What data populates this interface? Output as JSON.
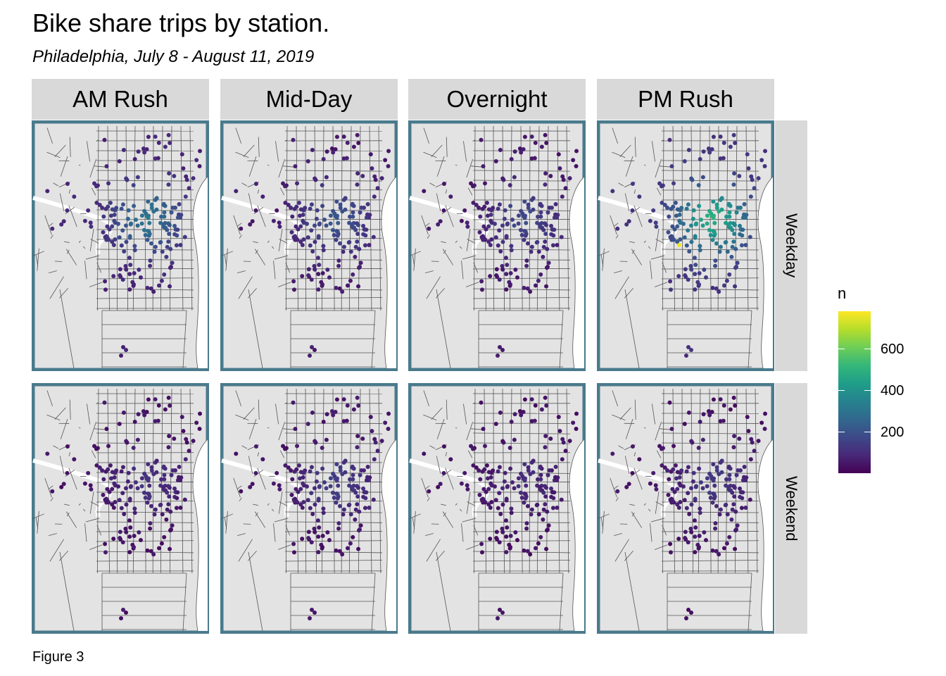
{
  "title": "Bike share trips by station.",
  "subtitle": "Philadelphia, July 8 - August 11, 2019",
  "caption": "Figure 3",
  "facets": {
    "columns": [
      "AM Rush",
      "Mid-Day",
      "Overnight",
      "PM Rush"
    ],
    "rows": [
      "Weekday",
      "Weekend"
    ]
  },
  "legend": {
    "title": "n",
    "ticks": [
      "200",
      "400",
      "600"
    ],
    "tick_values": [
      200,
      400,
      600
    ],
    "range": [
      0,
      780
    ],
    "palette": [
      "#440154",
      "#482878",
      "#3e4989",
      "#31688e",
      "#26828e",
      "#1f9e89",
      "#35b779",
      "#6ece58",
      "#b5de2b",
      "#fde725"
    ]
  },
  "colors": {
    "panel_border": "#4a7a8c",
    "land": "#e3e3e3",
    "water": "#ffffff",
    "streets": "#555555",
    "strip": "#d9d9d9"
  }
}
